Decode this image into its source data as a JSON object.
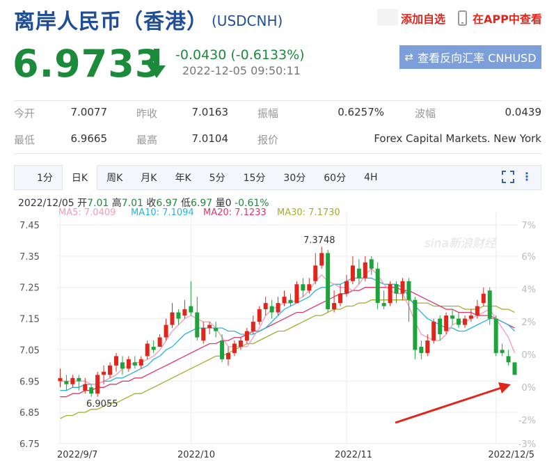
{
  "header": {
    "title": "离岸人民币（香港）",
    "code": "(USDCNH)",
    "add_watch": "添加自选",
    "view_app": "在APP中查看"
  },
  "quote": {
    "price": "6.9733",
    "change": "-0.0430 (-0.6133%)",
    "timestamp": "2022-12-05 09:50:11",
    "direction": "down",
    "reverse_button": "查看反向汇率 CNHUSD"
  },
  "stats": {
    "row1": [
      {
        "label": "今开",
        "value": "7.0077"
      },
      {
        "label": "昨收",
        "value": "7.0163"
      },
      {
        "label": "振幅",
        "value": "0.6257%"
      },
      {
        "label": "波幅",
        "value": "0.0439"
      }
    ],
    "row2": [
      {
        "label": "最低",
        "value": "6.9665"
      },
      {
        "label": "最高",
        "value": "7.0104"
      },
      {
        "label": "报价",
        "value": "Forex Capital Markets. New York"
      }
    ]
  },
  "tabs": [
    "1分",
    "日K",
    "周K",
    "月K",
    "年K",
    "5分",
    "15分",
    "30分",
    "60分",
    "4H"
  ],
  "active_tab": "日K",
  "kline_info": {
    "date": "2022/12/05",
    "open_label": "开",
    "open": "7.01",
    "high_label": "高",
    "high": "7.01",
    "close_label": "收",
    "close": "6.97",
    "low_label": "低",
    "low": "6.97",
    "vol_label": "量",
    "vol": "0",
    "pct": "-0.61%"
  },
  "ma_legend": [
    {
      "text": "MA5: 7.0409",
      "color": "#f29ab8"
    },
    {
      "text": "MA10: 7.1094",
      "color": "#27b3d6"
    },
    {
      "text": "MA20: 7.1233",
      "color": "#e0346a"
    },
    {
      "text": "MA30: 7.1730",
      "color": "#9bb22a"
    }
  ],
  "chart_data": {
    "type": "candlestick",
    "y_ticks": [
      "7.45",
      "7.35",
      "7.25",
      "7.15",
      "7.05",
      "6.95",
      "6.85",
      "6.75"
    ],
    "ylim": [
      6.75,
      7.45
    ],
    "pct_ticks": [
      "7%",
      "6%",
      "4%",
      "2%",
      "0%",
      "0%",
      "-2%",
      "-3%"
    ],
    "x_labels": [
      "2022/9/7",
      "2022/10",
      "2022/11",
      "2022/12/5"
    ],
    "annotations": {
      "max": "7.3748",
      "min": "6.9055"
    },
    "watermark": "sina新浪财经",
    "colors": {
      "up": "#e0251a",
      "down": "#1ea33a"
    },
    "candles": [
      [
        6.95,
        6.96,
        6.99,
        6.93
      ],
      [
        6.95,
        6.94,
        6.97,
        6.92
      ],
      [
        6.94,
        6.96,
        6.97,
        6.93
      ],
      [
        6.96,
        6.95,
        6.97,
        6.92
      ],
      [
        6.92,
        6.94,
        6.96,
        6.91
      ],
      [
        6.93,
        6.91,
        6.94,
        6.9
      ],
      [
        6.91,
        6.97,
        6.98,
        6.9
      ],
      [
        6.97,
        6.98,
        7.0,
        6.94
      ],
      [
        6.97,
        7.0,
        7.01,
        6.96
      ],
      [
        7.0,
        7.03,
        7.04,
        6.98
      ],
      [
        7.01,
        6.99,
        7.03,
        6.97
      ],
      [
        6.99,
        7.02,
        7.03,
        6.98
      ],
      [
        7.01,
        7.0,
        7.03,
        6.99
      ],
      [
        7.0,
        7.02,
        7.03,
        6.99
      ],
      [
        7.03,
        7.07,
        7.08,
        7.02
      ],
      [
        7.06,
        7.05,
        7.08,
        7.04
      ],
      [
        7.06,
        7.09,
        7.1,
        7.06
      ],
      [
        7.09,
        7.13,
        7.15,
        7.08
      ],
      [
        7.13,
        7.17,
        7.2,
        7.12
      ],
      [
        7.17,
        7.15,
        7.18,
        7.13
      ],
      [
        7.16,
        7.18,
        7.21,
        7.15
      ],
      [
        7.19,
        7.17,
        7.27,
        7.16
      ],
      [
        7.17,
        7.09,
        7.22,
        7.08
      ],
      [
        7.08,
        7.12,
        7.14,
        7.07
      ],
      [
        7.12,
        7.13,
        7.14,
        7.1
      ],
      [
        7.12,
        7.11,
        7.14,
        7.09
      ],
      [
        7.08,
        7.02,
        7.1,
        7.01
      ],
      [
        7.02,
        7.04,
        7.06,
        7.0
      ],
      [
        7.04,
        7.07,
        7.08,
        7.03
      ],
      [
        7.06,
        7.08,
        7.09,
        7.05
      ],
      [
        7.08,
        7.11,
        7.12,
        7.07
      ],
      [
        7.11,
        7.14,
        7.16,
        7.1
      ],
      [
        7.14,
        7.18,
        7.19,
        7.13
      ],
      [
        7.18,
        7.2,
        7.22,
        7.16
      ],
      [
        7.19,
        7.17,
        7.21,
        7.15
      ],
      [
        7.17,
        7.2,
        7.22,
        7.16
      ],
      [
        7.2,
        7.22,
        7.24,
        7.19
      ],
      [
        7.21,
        7.2,
        7.23,
        7.19
      ],
      [
        7.2,
        7.26,
        7.27,
        7.2
      ],
      [
        7.26,
        7.24,
        7.28,
        7.22
      ],
      [
        7.24,
        7.26,
        7.28,
        7.23
      ],
      [
        7.27,
        7.32,
        7.36,
        7.26
      ],
      [
        7.32,
        7.36,
        7.38,
        7.31
      ],
      [
        7.36,
        7.18,
        7.37,
        7.17
      ],
      [
        7.18,
        7.2,
        7.24,
        7.17
      ],
      [
        7.2,
        7.23,
        7.26,
        7.19
      ],
      [
        7.23,
        7.27,
        7.29,
        7.22
      ],
      [
        7.27,
        7.32,
        7.35,
        7.26
      ],
      [
        7.31,
        7.28,
        7.34,
        7.26
      ],
      [
        7.28,
        7.33,
        7.35,
        7.27
      ],
      [
        7.34,
        7.31,
        7.35,
        7.29
      ],
      [
        7.31,
        7.2,
        7.33,
        7.18
      ],
      [
        7.2,
        7.19,
        7.24,
        7.18
      ],
      [
        7.2,
        7.26,
        7.27,
        7.19
      ],
      [
        7.26,
        7.23,
        7.27,
        7.2
      ],
      [
        7.23,
        7.27,
        7.28,
        7.21
      ],
      [
        7.27,
        7.21,
        7.28,
        7.14
      ],
      [
        7.21,
        7.05,
        7.22,
        7.02
      ],
      [
        7.06,
        7.04,
        7.08,
        7.02
      ],
      [
        7.04,
        7.08,
        7.1,
        7.03
      ],
      [
        7.08,
        7.14,
        7.15,
        7.07
      ],
      [
        7.15,
        7.1,
        7.16,
        7.08
      ],
      [
        7.11,
        7.16,
        7.17,
        7.1
      ],
      [
        7.16,
        7.15,
        7.18,
        7.13
      ],
      [
        7.15,
        7.13,
        7.17,
        7.12
      ],
      [
        7.13,
        7.15,
        7.16,
        7.12
      ],
      [
        7.15,
        7.16,
        7.18,
        7.14
      ],
      [
        7.16,
        7.19,
        7.21,
        7.15
      ],
      [
        7.2,
        7.23,
        7.25,
        7.19
      ],
      [
        7.24,
        7.15,
        7.25,
        7.13
      ],
      [
        7.15,
        7.04,
        7.16,
        7.03
      ],
      [
        7.05,
        7.04,
        7.07,
        7.03
      ],
      [
        7.03,
        7.01,
        7.05,
        7.0
      ],
      [
        7.01,
        6.97,
        7.01,
        6.97
      ]
    ],
    "ma5": [
      6.95,
      6.95,
      6.95,
      6.95,
      6.95,
      6.94,
      6.94,
      6.95,
      6.96,
      6.97,
      6.99,
      7.0,
      7.01,
      7.01,
      7.02,
      7.03,
      7.05,
      7.08,
      7.11,
      7.13,
      7.15,
      7.16,
      7.15,
      7.14,
      7.14,
      7.12,
      7.09,
      7.06,
      7.06,
      7.06,
      7.06,
      7.09,
      7.12,
      7.16,
      7.18,
      7.19,
      7.2,
      7.2,
      7.21,
      7.22,
      7.24,
      7.27,
      7.29,
      7.27,
      7.26,
      7.25,
      7.25,
      7.24,
      7.26,
      7.29,
      7.31,
      7.29,
      7.26,
      7.24,
      7.23,
      7.23,
      7.19,
      7.14,
      7.1,
      7.09,
      7.08,
      7.08,
      7.1,
      7.13,
      7.14,
      7.14,
      7.15,
      7.16,
      7.17,
      7.18,
      7.15,
      7.12,
      7.09,
      7.04
    ],
    "ma10": [
      6.92,
      6.92,
      6.93,
      6.93,
      6.94,
      6.94,
      6.94,
      6.95,
      6.95,
      6.96,
      6.96,
      6.97,
      6.98,
      6.99,
      7.0,
      7.02,
      7.03,
      7.05,
      7.06,
      7.08,
      7.1,
      7.11,
      7.12,
      7.12,
      7.12,
      7.12,
      7.12,
      7.11,
      7.11,
      7.1,
      7.1,
      7.1,
      7.11,
      7.12,
      7.14,
      7.16,
      7.18,
      7.19,
      7.2,
      7.21,
      7.22,
      7.24,
      7.25,
      7.25,
      7.26,
      7.26,
      7.27,
      7.28,
      7.28,
      7.28,
      7.28,
      7.27,
      7.26,
      7.26,
      7.26,
      7.25,
      7.22,
      7.19,
      7.17,
      7.15,
      7.14,
      7.13,
      7.12,
      7.12,
      7.11,
      7.11,
      7.12,
      7.13,
      7.14,
      7.15,
      7.15,
      7.14,
      7.13,
      7.11
    ],
    "ma20": [
      6.9,
      6.9,
      6.91,
      6.91,
      6.92,
      6.92,
      6.93,
      6.93,
      6.94,
      6.94,
      6.95,
      6.95,
      6.96,
      6.96,
      6.97,
      6.98,
      6.99,
      7.0,
      7.01,
      7.02,
      7.03,
      7.04,
      7.05,
      7.06,
      7.07,
      7.07,
      7.08,
      7.08,
      7.09,
      7.09,
      7.1,
      7.11,
      7.11,
      7.12,
      7.13,
      7.14,
      7.15,
      7.16,
      7.17,
      7.17,
      7.18,
      7.19,
      7.2,
      7.21,
      7.22,
      7.23,
      7.23,
      7.24,
      7.24,
      7.25,
      7.25,
      7.25,
      7.25,
      7.25,
      7.25,
      7.24,
      7.24,
      7.23,
      7.22,
      7.21,
      7.2,
      7.19,
      7.18,
      7.18,
      7.17,
      7.17,
      7.17,
      7.16,
      7.16,
      7.16,
      7.15,
      7.14,
      7.13,
      7.12
    ],
    "ma30": [
      6.83,
      6.84,
      6.84,
      6.85,
      6.85,
      6.86,
      6.86,
      6.87,
      6.88,
      6.88,
      6.89,
      6.9,
      6.91,
      6.91,
      6.92,
      6.93,
      6.94,
      6.95,
      6.96,
      6.97,
      6.98,
      6.99,
      7.0,
      7.01,
      7.02,
      7.03,
      7.03,
      7.04,
      7.05,
      7.06,
      7.07,
      7.07,
      7.08,
      7.09,
      7.1,
      7.11,
      7.11,
      7.12,
      7.13,
      7.14,
      7.15,
      7.16,
      7.16,
      7.17,
      7.18,
      7.18,
      7.19,
      7.19,
      7.2,
      7.2,
      7.21,
      7.21,
      7.21,
      7.21,
      7.21,
      7.21,
      7.21,
      7.2,
      7.2,
      7.2,
      7.19,
      7.19,
      7.19,
      7.19,
      7.19,
      7.18,
      7.18,
      7.18,
      7.19,
      7.19,
      7.19,
      7.18,
      7.18,
      7.17
    ]
  }
}
